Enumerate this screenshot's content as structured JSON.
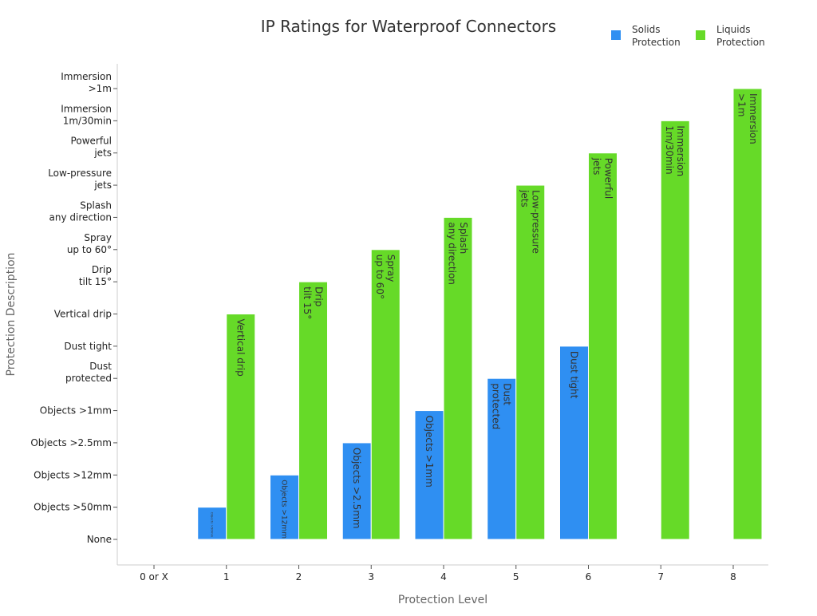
{
  "chart_data": {
    "type": "bar",
    "title": "IP Ratings for Waterproof Connectors",
    "xlabel": "Protection Level",
    "ylabel": "Protection Description",
    "categories": [
      "0 or X",
      "1",
      "2",
      "3",
      "4",
      "5",
      "6",
      "7",
      "8"
    ],
    "y_tick_labels": [
      "None",
      "Objects >50mm",
      "Objects >12mm",
      "Objects >2.5mm",
      "Objects >1mm",
      "Dust\nprotected",
      "Dust tight",
      "Vertical drip",
      "Drip\ntilt 15°",
      "Spray\nup to 60°",
      "Splash\nany direction",
      "Low-pressure\njets",
      "Powerful\njets",
      "Immersion\n1m/30min",
      "Immersion\n>1m"
    ],
    "ylim": [
      -0.8,
      14.8
    ],
    "grid": false,
    "legend_position": "top-right",
    "series": [
      {
        "name": "Solids\nProtection",
        "color": "#2f8ff2",
        "values": [
          0,
          1,
          2,
          3,
          4,
          5,
          6,
          null,
          null
        ]
      },
      {
        "name": "Liquids\nProtection",
        "color": "#66da28",
        "values": [
          0,
          7,
          8,
          9,
          10,
          11,
          12,
          13,
          14
        ]
      }
    ]
  }
}
